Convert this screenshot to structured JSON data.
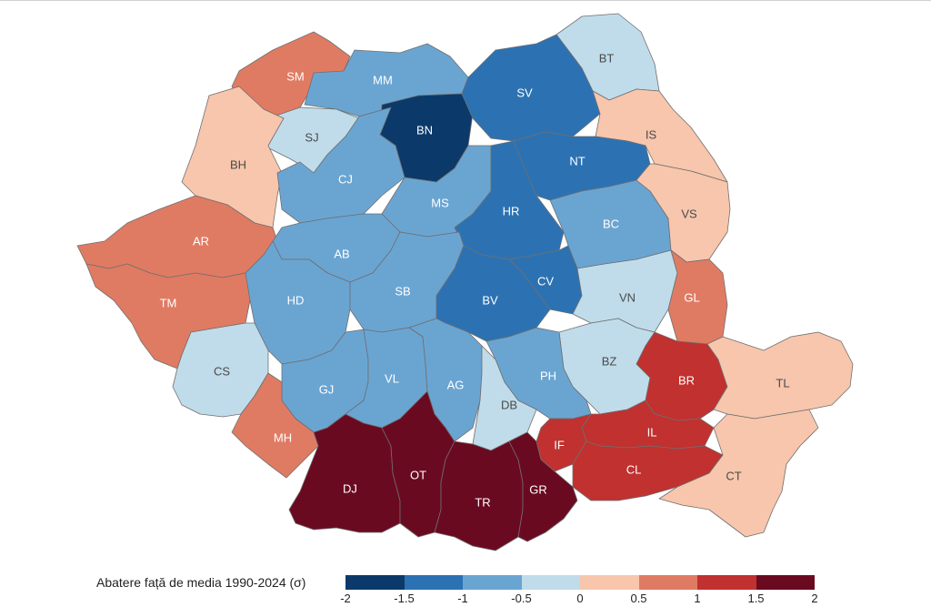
{
  "legend": {
    "title": "Abatere față de media 1990-2024 (σ)",
    "ticks": [
      "-2",
      "-1.5",
      "-1",
      "-0.5",
      "0",
      "0.5",
      "1",
      "1.5",
      "2"
    ],
    "colors": [
      "#0b3a6a",
      "#2c72b3",
      "#6aa5d2",
      "#c0dcea",
      "#f7c6ac",
      "#e07b63",
      "#c0312f",
      "#6a0a21"
    ]
  },
  "counties": [
    {
      "code": "SM",
      "value": 0.6
    },
    {
      "code": "MM",
      "value": -0.8
    },
    {
      "code": "BT",
      "value": -0.3
    },
    {
      "code": "SJ",
      "value": -0.3
    },
    {
      "code": "BN",
      "value": -1.6
    },
    {
      "code": "SV",
      "value": -1.3
    },
    {
      "code": "IS",
      "value": 0.3
    },
    {
      "code": "BH",
      "value": 0.4
    },
    {
      "code": "CJ",
      "value": -0.8
    },
    {
      "code": "MS",
      "value": -0.8
    },
    {
      "code": "HR",
      "value": -1.3
    },
    {
      "code": "NT",
      "value": -1.3
    },
    {
      "code": "BC",
      "value": -0.8
    },
    {
      "code": "VS",
      "value": 0.3
    },
    {
      "code": "AR",
      "value": 0.8
    },
    {
      "code": "AB",
      "value": -0.8
    },
    {
      "code": "TM",
      "value": 0.8
    },
    {
      "code": "HD",
      "value": -0.8
    },
    {
      "code": "SB",
      "value": -0.8
    },
    {
      "code": "BV",
      "value": -1.3
    },
    {
      "code": "CV",
      "value": -1.3
    },
    {
      "code": "VN",
      "value": -0.3
    },
    {
      "code": "GL",
      "value": 0.8
    },
    {
      "code": "CS",
      "value": -0.3
    },
    {
      "code": "BZ",
      "value": -0.3
    },
    {
      "code": "BR",
      "value": 1.3
    },
    {
      "code": "TL",
      "value": 0.3
    },
    {
      "code": "GJ",
      "value": -0.8
    },
    {
      "code": "VL",
      "value": -0.8
    },
    {
      "code": "AG",
      "value": -0.8
    },
    {
      "code": "PH",
      "value": -0.8
    },
    {
      "code": "DB",
      "value": -0.3
    },
    {
      "code": "IL",
      "value": 1.3
    },
    {
      "code": "MH",
      "value": 0.8
    },
    {
      "code": "IF",
      "value": 1.3
    },
    {
      "code": "CL",
      "value": 1.3
    },
    {
      "code": "CT",
      "value": 0.3
    },
    {
      "code": "DJ",
      "value": 1.8
    },
    {
      "code": "OT",
      "value": 1.8
    },
    {
      "code": "TR",
      "value": 1.8
    },
    {
      "code": "GR",
      "value": 1.8
    }
  ]
}
